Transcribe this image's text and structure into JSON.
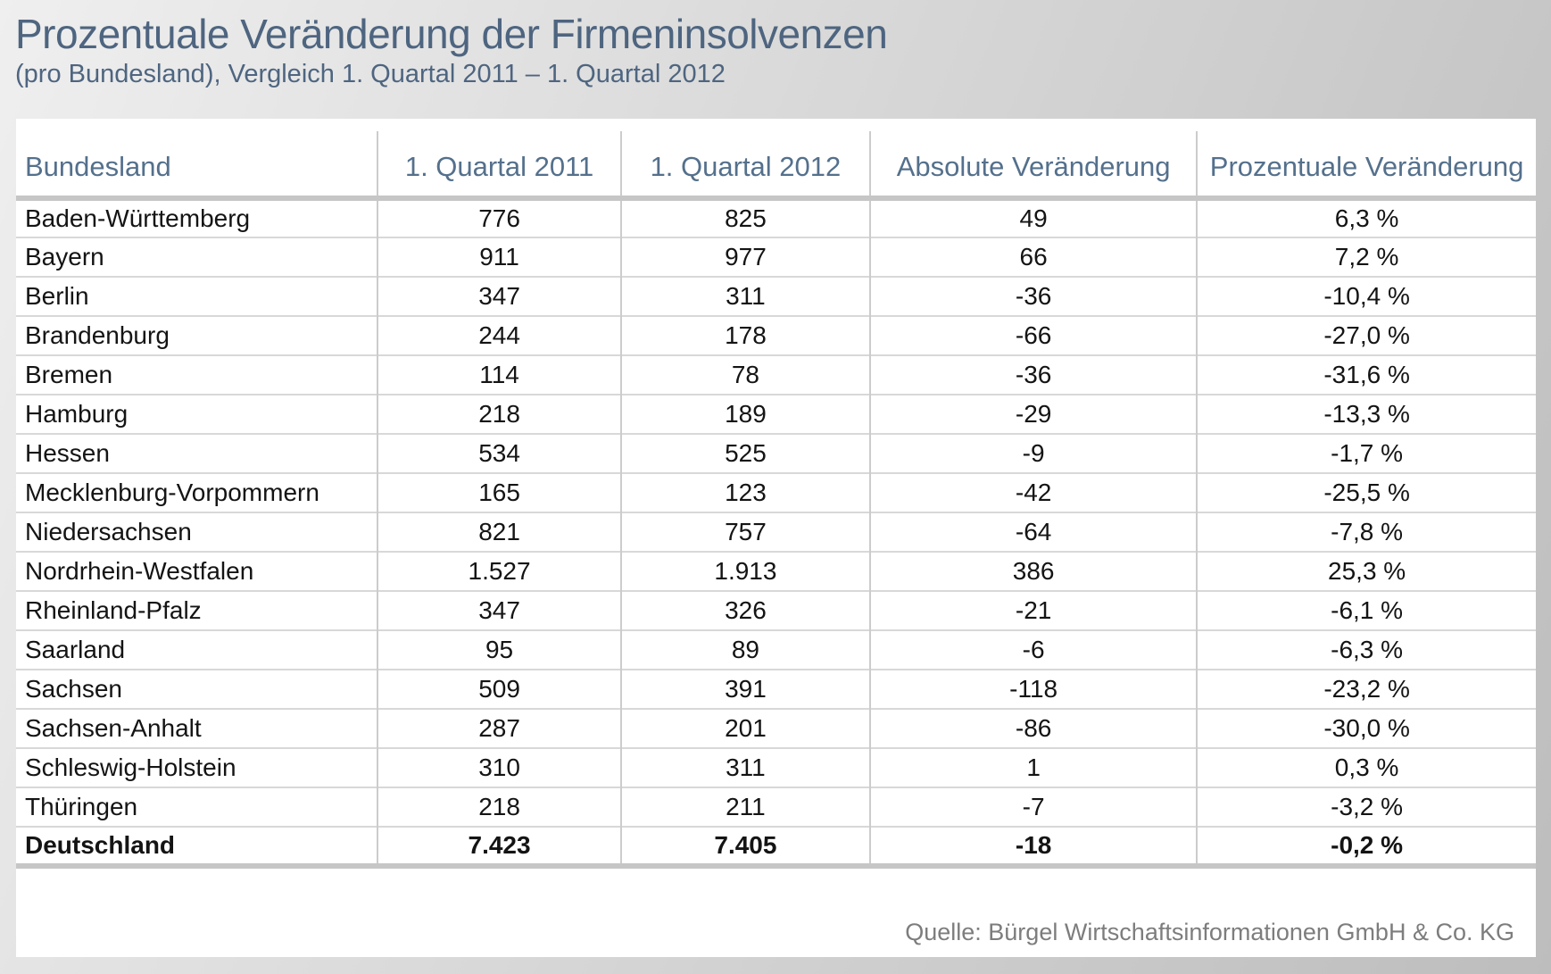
{
  "header": {
    "title": "Prozentuale Veränderung der Firmeninsolvenzen",
    "subtitle": "(pro Bundesland), Vergleich 1. Quartal 2011 – 1. Quartal 2012"
  },
  "chart_data": {
    "type": "table",
    "title": "Prozentuale Veränderung der Firmeninsolvenzen",
    "subtitle": "(pro Bundesland), Vergleich 1. Quartal 2011 – 1. Quartal 2012",
    "columns": [
      "Bundesland",
      "1. Quartal 2011",
      "1. Quartal 2012",
      "Absolute Veränderung",
      "Prozentuale Veränderung"
    ],
    "rows": [
      [
        "Baden-Württemberg",
        "776",
        "825",
        "49",
        "6,3 %"
      ],
      [
        "Bayern",
        "911",
        "977",
        "66",
        "7,2 %"
      ],
      [
        "Berlin",
        "347",
        "311",
        "-36",
        "-10,4 %"
      ],
      [
        "Brandenburg",
        "244",
        "178",
        "-66",
        "-27,0 %"
      ],
      [
        "Bremen",
        "114",
        "78",
        "-36",
        "-31,6 %"
      ],
      [
        "Hamburg",
        "218",
        "189",
        "-29",
        "-13,3 %"
      ],
      [
        "Hessen",
        "534",
        "525",
        "-9",
        "-1,7 %"
      ],
      [
        "Mecklenburg-Vorpommern",
        "165",
        "123",
        "-42",
        "-25,5 %"
      ],
      [
        "Niedersachsen",
        "821",
        "757",
        "-64",
        "-7,8 %"
      ],
      [
        "Nordrhein-Westfalen",
        "1.527",
        "1.913",
        "386",
        "25,3 %"
      ],
      [
        "Rheinland-Pfalz",
        "347",
        "326",
        "-21",
        "-6,1 %"
      ],
      [
        "Saarland",
        "95",
        "89",
        "-6",
        "-6,3 %"
      ],
      [
        "Sachsen",
        "509",
        "391",
        "-118",
        "-23,2 %"
      ],
      [
        "Sachsen-Anhalt",
        "287",
        "201",
        "-86",
        "-30,0 %"
      ],
      [
        "Schleswig-Holstein",
        "310",
        "311",
        "1",
        "0,3 %"
      ],
      [
        "Thüringen",
        "218",
        "211",
        "-7",
        "-3,2 %"
      ]
    ],
    "total_row": [
      "Deutschland",
      "7.423",
      "7.405",
      "-18",
      "-0,2 %"
    ]
  },
  "footer": {
    "source": "Quelle: Bürgel Wirtschaftsinformationen GmbH & Co. KG"
  },
  "colors": {
    "title_text": "#4e6580",
    "header_text": "#54708c",
    "body_text": "#141414",
    "source_text": "#7d7d7d",
    "thick_rule": "#c6c6c6",
    "row_line": "#d8d8d8",
    "column_line": "#cccccc",
    "panel_background": "#ffffff"
  }
}
